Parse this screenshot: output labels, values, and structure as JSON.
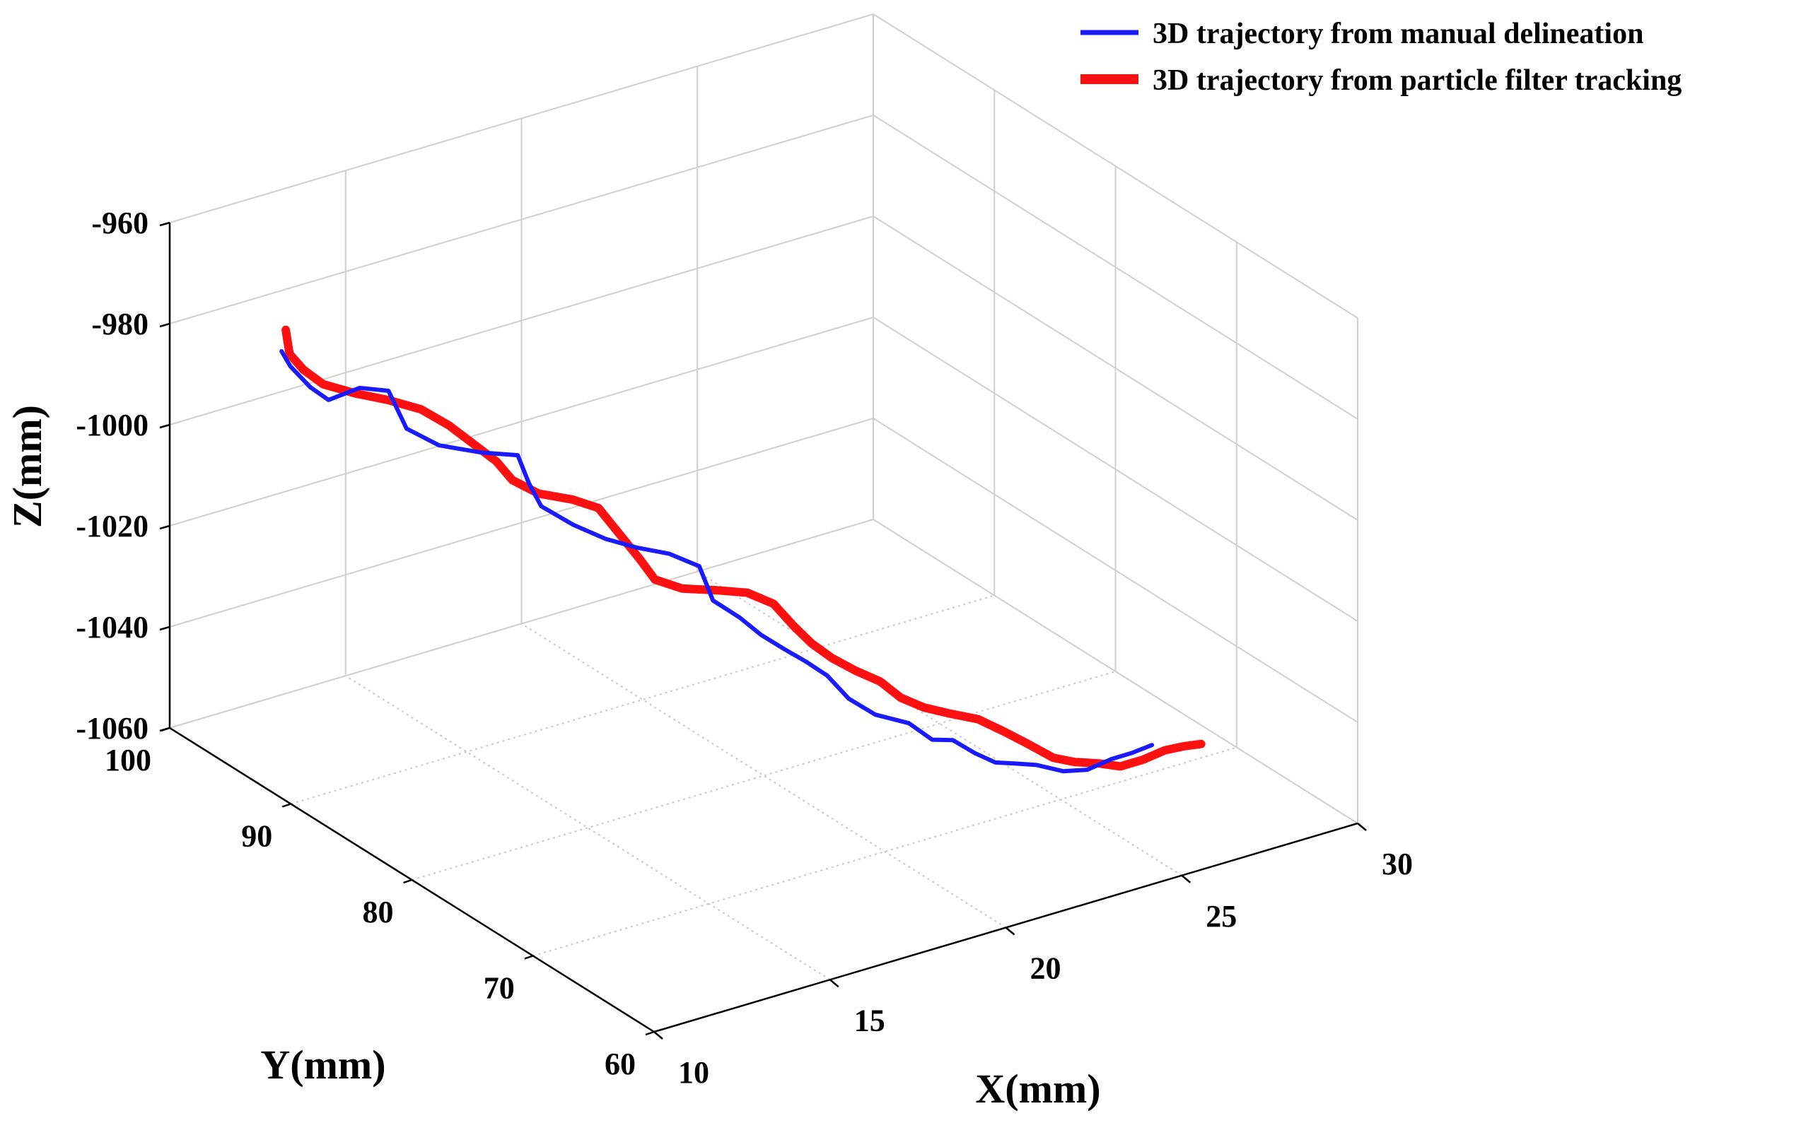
{
  "chart_data": {
    "type": "line",
    "projection": "3d",
    "xlabel": "X(mm)",
    "ylabel": "Y(mm)",
    "zlabel": "Z(mm)",
    "xlim": [
      10,
      30
    ],
    "ylim": [
      60,
      100
    ],
    "zlim": [
      -1060,
      -960
    ],
    "xticks": [
      10,
      15,
      20,
      25,
      30
    ],
    "yticks": [
      60,
      70,
      80,
      90,
      100
    ],
    "zticks": [
      -960,
      -980,
      -1000,
      -1020,
      -1040,
      -1060
    ],
    "xtick_labels": [
      "10",
      "15",
      "20",
      "25",
      "30"
    ],
    "ytick_labels": [
      "60",
      "70",
      "80",
      "90",
      "100"
    ],
    "ztick_labels": [
      "-960",
      "-980",
      "-1000",
      "-1020",
      "-1040",
      "-1060"
    ],
    "grid": true,
    "legend_position": "top-right",
    "series": [
      {
        "name": "3D trajectory from manual delineation",
        "color": "#1a1aff",
        "points": [
          [
            11.42,
            94.89,
            -980.7
          ],
          [
            11.62,
            94.73,
            -983.9
          ],
          [
            11.91,
            93.93,
            -987.4
          ],
          [
            12.26,
            93.45,
            -989.9
          ],
          [
            13.28,
            93.84,
            -990.2
          ],
          [
            13.96,
            93.44,
            -991.6
          ],
          [
            14.08,
            92.29,
            -997.6
          ],
          [
            14.69,
            91.39,
            -1000.8
          ],
          [
            15.59,
            90.55,
            -1002.8
          ],
          [
            16.39,
            89.82,
            -1003.9
          ],
          [
            16.43,
            89.03,
            -1008.3
          ],
          [
            16.5,
            88.2,
            -1011.8
          ],
          [
            17.14,
            87.41,
            -1015.6
          ],
          [
            17.78,
            86.61,
            -1018.5
          ],
          [
            18.42,
            85.82,
            -1020.4
          ],
          [
            19.08,
            85.12,
            -1021.9
          ],
          [
            19.65,
            84.3,
            -1024.3
          ],
          [
            19.73,
            83.4,
            -1029.9
          ],
          [
            20.14,
            82.38,
            -1032.6
          ],
          [
            20.41,
            81.42,
            -1035.1
          ],
          [
            20.73,
            80.45,
            -1037.1
          ],
          [
            21.06,
            79.62,
            -1039.0
          ],
          [
            21.35,
            78.68,
            -1041.0
          ],
          [
            21.6,
            77.62,
            -1044.5
          ],
          [
            22.01,
            76.62,
            -1047.0
          ],
          [
            22.66,
            75.74,
            -1048.7
          ],
          [
            22.96,
            74.69,
            -1051.0
          ],
          [
            23.36,
            74.15,
            -1051.1
          ],
          [
            23.65,
            73.16,
            -1052.8
          ],
          [
            23.96,
            72.37,
            -1054.1
          ],
          [
            24.29,
            71.8,
            -1054.1
          ],
          [
            24.68,
            71.06,
            -1054.1
          ],
          [
            25.11,
            70.12,
            -1054.8
          ],
          [
            25.54,
            69.38,
            -1054.3
          ],
          [
            26.06,
            68.88,
            -1052.5
          ],
          [
            26.43,
            68.3,
            -1051.2
          ],
          [
            26.82,
            67.75,
            -1049.6
          ]
        ]
      },
      {
        "name": "3D trajectory from particle filter tracking",
        "color": "#ff1010",
        "points": [
          [
            11.66,
            95.24,
            -977.5
          ],
          [
            11.71,
            95.07,
            -982.1
          ],
          [
            11.96,
            94.66,
            -985.1
          ],
          [
            12.28,
            93.95,
            -987.6
          ],
          [
            13.04,
            93.5,
            -990.3
          ],
          [
            13.85,
            93.09,
            -992.7
          ],
          [
            14.61,
            92.64,
            -995.4
          ],
          [
            15.14,
            91.87,
            -998.5
          ],
          [
            15.58,
            90.97,
            -1002.0
          ],
          [
            15.94,
            90.28,
            -1004.9
          ],
          [
            16.14,
            89.54,
            -1007.9
          ],
          [
            16.62,
            88.77,
            -1010.4
          ],
          [
            17.34,
            88.07,
            -1012.0
          ],
          [
            17.83,
            87.34,
            -1013.6
          ],
          [
            18.15,
            86.25,
            -1018.6
          ],
          [
            18.4,
            85.55,
            -1022.3
          ],
          [
            18.6,
            84.92,
            -1025.7
          ],
          [
            19.13,
            84.2,
            -1027.5
          ],
          [
            19.82,
            83.44,
            -1028.1
          ],
          [
            20.43,
            82.6,
            -1028.6
          ],
          [
            20.89,
            81.77,
            -1030.5
          ],
          [
            21.13,
            80.83,
            -1033.9
          ],
          [
            21.34,
            79.96,
            -1036.5
          ],
          [
            21.61,
            79.03,
            -1038.6
          ],
          [
            21.97,
            78.14,
            -1040.5
          ],
          [
            22.38,
            77.28,
            -1042.2
          ],
          [
            22.68,
            76.47,
            -1044.8
          ],
          [
            23.06,
            75.67,
            -1046.3
          ],
          [
            23.52,
            74.91,
            -1047.3
          ],
          [
            24.04,
            74.04,
            -1048.2
          ],
          [
            24.47,
            73.2,
            -1050.2
          ],
          [
            24.88,
            72.37,
            -1052.3
          ],
          [
            25.27,
            71.4,
            -1054.4
          ],
          [
            25.65,
            70.72,
            -1055.0
          ],
          [
            26.05,
            69.92,
            -1054.9
          ],
          [
            26.38,
            69.07,
            -1054.9
          ],
          [
            26.8,
            68.44,
            -1053.5
          ],
          [
            27.23,
            67.89,
            -1051.7
          ],
          [
            27.57,
            67.24,
            -1050.6
          ],
          [
            27.85,
            66.68,
            -1049.9
          ]
        ]
      }
    ]
  }
}
